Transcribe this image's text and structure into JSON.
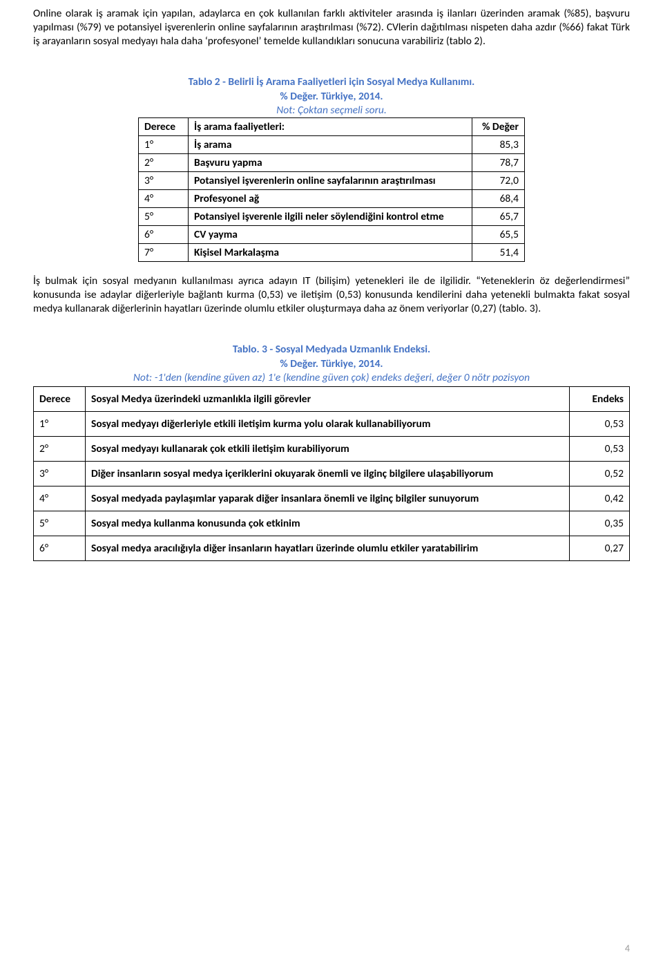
{
  "colors": {
    "accent": "#4472c4",
    "text": "#000000",
    "border": "#000000",
    "pagenum": "#999999"
  },
  "fonts": {
    "body_family": "Calibri",
    "body_size_pt": 11.5
  },
  "para1": "Online olarak iş aramak için yapılan, adaylarca en çok kullanılan farklı aktiviteler arasında iş ilanları üzerinden aramak (%85), başvuru yapılması (%79) ve potansiyel işverenlerin online sayfalarının araştırılması (%72). CVlerin dağıtılması nispeten daha azdır (%66) fakat Türk iş arayanların sosyal medyayı hala daha ‘profesyonel’ temelde kullandıkları sonucuna varabiliriz (tablo 2).",
  "tablo2": {
    "title": "Tablo 2 - Belirli İş Arama Faaliyetleri için Sosyal Medya Kullanımı.",
    "subtitle": "% Değer. Türkiye, 2014.",
    "note": "Not: Çoktan seçmeli soru.",
    "headers": {
      "rank": "Derece",
      "activity": "İş arama faaliyetleri:",
      "value": "% Değer"
    },
    "rows": [
      {
        "rank": "1°",
        "activity": "İş arama",
        "value": "85,3"
      },
      {
        "rank": "2°",
        "activity": "Başvuru yapma",
        "value": "78,7"
      },
      {
        "rank": "3°",
        "activity": "Potansiyel işverenlerin online sayfalarının araştırılması",
        "value": "72,0"
      },
      {
        "rank": "4°",
        "activity": "Profesyonel ağ",
        "value": "68,4"
      },
      {
        "rank": "5°",
        "activity": "Potansiyel işverenle ilgili neler söylendiğini kontrol etme",
        "value": "65,7"
      },
      {
        "rank": "6°",
        "activity": "CV yayma",
        "value": "65,5"
      },
      {
        "rank": "7°",
        "activity": "Kişisel Markalaşma",
        "value": "51,4"
      }
    ]
  },
  "para2": "İş bulmak için sosyal medyanın kullanılması ayrıca adayın IT (bilişim) yetenekleri ile de ilgilidir. “Yeteneklerin öz değerlendirmesi” konusunda ise adaylar diğerleriyle bağlantı kurma (0,53) ve iletişim (0,53) konusunda kendilerini daha yetenekli bulmakta fakat sosyal medya kullanarak diğerlerinin hayatları üzerinde olumlu etkiler oluşturmaya daha az önem veriyorlar (0,27) (tablo. 3).",
  "tablo3": {
    "title": "Tablo. 3 - Sosyal Medyada Uzmanlık Endeksi.",
    "subtitle": "% Değer. Türkiye, 2014.",
    "note": "Not: -1'den (kendine güven az) 1'e (kendine güven çok) endeks değeri, değer 0 nötr pozisyon",
    "headers": {
      "rank": "Derece",
      "task": "Sosyal Medya üzerindeki uzmanlıkla ilgili görevler",
      "value": "Endeks"
    },
    "rows": [
      {
        "rank": "1°",
        "task": "Sosyal medyayı diğerleriyle etkili iletişim kurma yolu olarak kullanabiliyorum",
        "value": "0,53"
      },
      {
        "rank": "2°",
        "task": "Sosyal medyayı kullanarak çok etkili iletişim kurabiliyorum",
        "value": "0,53"
      },
      {
        "rank": "3°",
        "task": "Diğer insanların sosyal medya içeriklerini okuyarak önemli ve ilginç bilgilere ulaşabiliyorum",
        "value": "0,52"
      },
      {
        "rank": "4°",
        "task": "Sosyal medyada paylaşımlar yaparak diğer insanlara önemli ve ilginç bilgiler sunuyorum",
        "value": "0,42"
      },
      {
        "rank": "5°",
        "task": "Sosyal medya kullanma konusunda çok etkinim",
        "value": "0,35"
      },
      {
        "rank": "6°",
        "task": "Sosyal medya aracılığıyla diğer insanların hayatları üzerinde olumlu etkiler yaratabilirim",
        "value": "0,27"
      }
    ]
  },
  "pagenum": "4"
}
